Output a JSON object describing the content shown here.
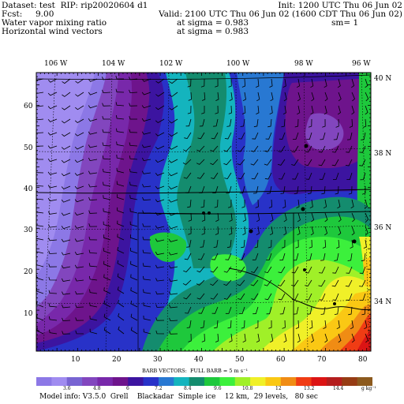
{
  "header": {
    "line1_left": "Dataset: test  RIP: rip20020604 d1",
    "line1_right": "Init: 1200 UTC Thu 06 Jun 02",
    "line2_left": "Fcst:     9.00",
    "line2_right": "Valid: 2100 UTC Thu 06 Jun 02 (1600 CDT Thu 06 Jun 02)",
    "line3_left": "Water vapor mixing ratio",
    "line3_mid": "at sigma = 0.983",
    "line3_right": "sm= 1",
    "line4_left": "Horizontal wind vectors",
    "line4_mid": "at sigma = 0.983"
  },
  "lon_labels": [
    "106 W",
    "104 W",
    "102 W",
    "100 W",
    "98 W",
    "96 W"
  ],
  "lat_labels": [
    "40 N",
    "38 N",
    "36 N",
    "34 N"
  ],
  "x_ticks": [
    "10",
    "20",
    "30",
    "40",
    "50",
    "60",
    "70",
    "80"
  ],
  "y_ticks": [
    "10",
    "20",
    "30",
    "40",
    "50",
    "60"
  ],
  "barb_note": "BARB VECTORS:  FULL BARB = 5 m s⁻¹",
  "colorbar": {
    "labels": [
      "3.6",
      "4.8",
      "6",
      "7.2",
      "8.4",
      "9.6",
      "10.8",
      "12",
      "13.2",
      "14.4"
    ],
    "units": "g kg⁻¹",
    "colors": [
      "#8c78e6",
      "#a08cf0",
      "#7864d2",
      "#8246be",
      "#7828aa",
      "#6e148c",
      "#3c14a0",
      "#2832c8",
      "#2878d2",
      "#14b4be",
      "#148c6e",
      "#1ec83c",
      "#3cf03c",
      "#a0f028",
      "#f0f028",
      "#fac814",
      "#f08c14",
      "#f03c14",
      "#dc1414",
      "#b41e1e",
      "#963c14",
      "#8c5a1e"
    ]
  },
  "footer": "Model info: V3.5.0  Grell    Blackadar  Simple ice    12 km,  29 levels,   80 sec",
  "domain": {
    "x_range": [
      1,
      82
    ],
    "y_range": [
      1,
      68
    ]
  }
}
